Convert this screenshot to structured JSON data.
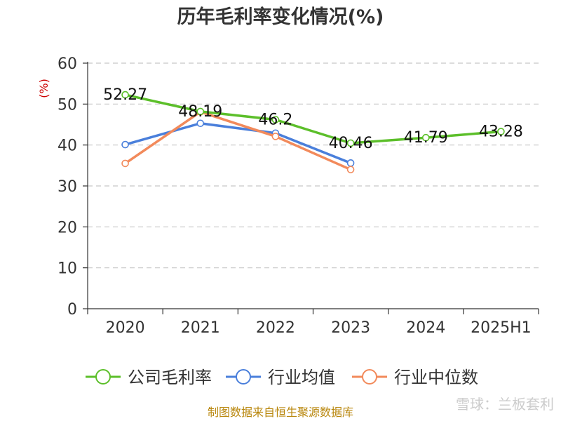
{
  "chart_data": {
    "type": "line",
    "title": "历年毛利率变化情况(%)",
    "ylabel": "(%)",
    "xlabel": "",
    "categories": [
      "2020",
      "2021",
      "2022",
      "2023",
      "2024",
      "2025H1"
    ],
    "ylim": [
      0,
      60
    ],
    "yticks": [
      0,
      10,
      20,
      30,
      40,
      50,
      60
    ],
    "grid": true,
    "legend_position": "bottom",
    "series": [
      {
        "name": "公司毛利率",
        "color": "#5cbf2a",
        "values": [
          52.27,
          48.19,
          46.2,
          40.46,
          41.79,
          43.28
        ],
        "data_labels": [
          "52.27",
          "48.19",
          "46.2",
          "40.46",
          "41.79",
          "43.28"
        ]
      },
      {
        "name": "行业均值",
        "color": "#4a7fdb",
        "values": [
          40.1,
          45.3,
          42.9,
          35.6,
          null,
          null
        ]
      },
      {
        "name": "行业中位数",
        "color": "#f28a5b",
        "values": [
          35.5,
          48.1,
          42.1,
          34.0,
          null,
          null
        ]
      }
    ]
  },
  "source": "制图数据来自恒生聚源数据库",
  "watermark": "雪球：兰板套利"
}
